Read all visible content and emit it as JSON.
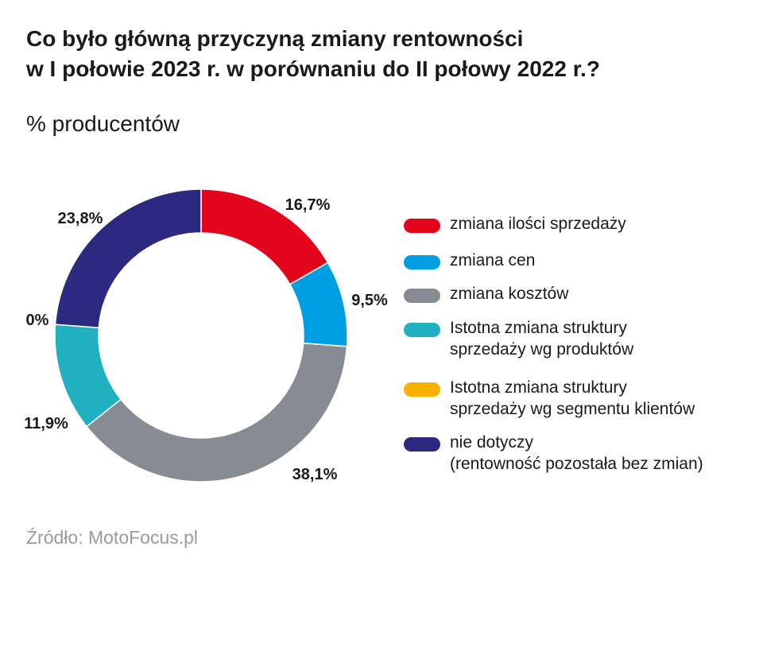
{
  "chart_data": {
    "type": "pie",
    "variant": "donut",
    "title_lines": [
      "Co było główną przyczyną zmiany rentowności",
      "w I połowie 2023 r. w porównaniu do II połowy 2022 r.?"
    ],
    "subtitle": "% producentów",
    "unit": "%",
    "slices": [
      {
        "label_lines": [
          "zmiana ilości sprzedaży"
        ],
        "value": 16.7,
        "value_label": "16,7%",
        "color": "#e3051b"
      },
      {
        "label_lines": [
          "zmiana cen"
        ],
        "value": 9.5,
        "value_label": "9,5%",
        "color": "#009fe3"
      },
      {
        "label_lines": [
          "zmiana kosztów"
        ],
        "value": 38.1,
        "value_label": "38,1%",
        "color": "#878c94"
      },
      {
        "label_lines": [
          "Istotna zmiana struktury",
          "sprzedaży wg produktów"
        ],
        "value": 11.9,
        "value_label": "11,9%",
        "color": "#20b0c0"
      },
      {
        "label_lines": [
          "Istotna zmiana struktury",
          "sprzedaży wg segmentu klientów"
        ],
        "value": 0,
        "value_label": "0%",
        "color": "#f9b200"
      },
      {
        "label_lines": [
          "nie dotyczy",
          "(rentowność pozostała bez zmian)"
        ],
        "value": 23.8,
        "value_label": "23,8%",
        "color": "#2c2a80"
      }
    ],
    "legend_position": "right",
    "source": "Źródło: MotoFocus.pl"
  }
}
